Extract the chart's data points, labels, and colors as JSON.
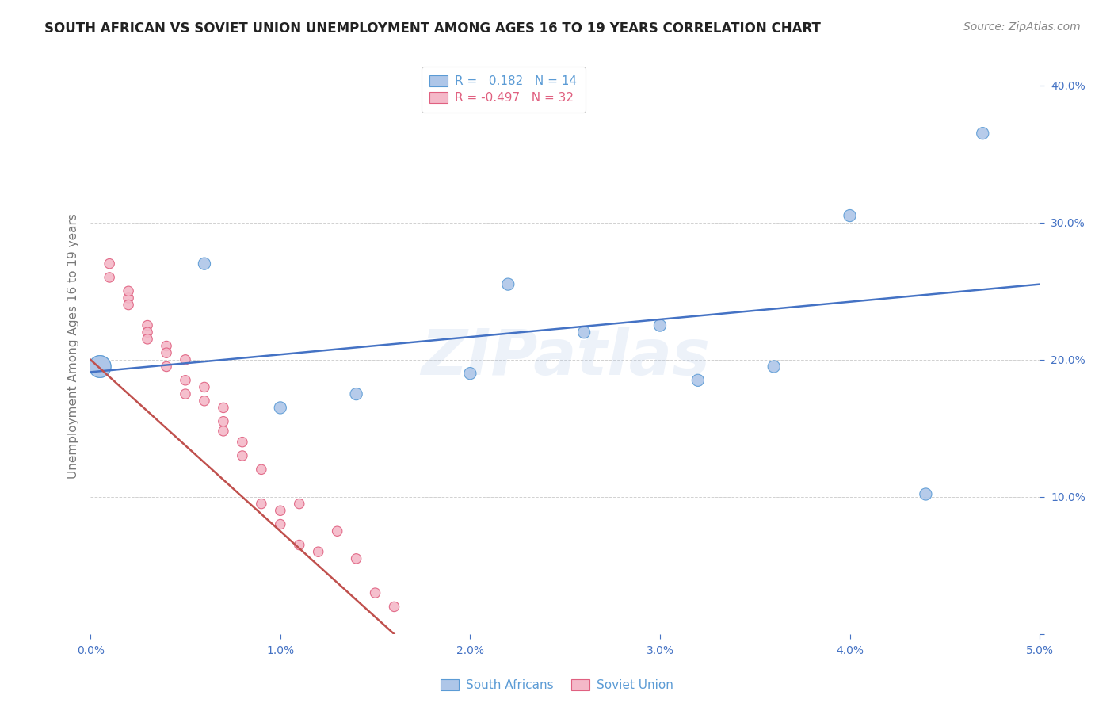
{
  "title": "SOUTH AFRICAN VS SOVIET UNION UNEMPLOYMENT AMONG AGES 16 TO 19 YEARS CORRELATION CHART",
  "source": "Source: ZipAtlas.com",
  "ylabel": "Unemployment Among Ages 16 to 19 years",
  "xlim": [
    0.0,
    0.05
  ],
  "ylim": [
    0.0,
    0.42
  ],
  "x_ticks": [
    0.0,
    0.01,
    0.02,
    0.03,
    0.04,
    0.05
  ],
  "x_tick_labels": [
    "0.0%",
    "1.0%",
    "2.0%",
    "3.0%",
    "4.0%",
    "5.0%"
  ],
  "y_ticks": [
    0.0,
    0.1,
    0.2,
    0.3,
    0.4
  ],
  "y_tick_labels": [
    "",
    "10.0%",
    "20.0%",
    "30.0%",
    "40.0%"
  ],
  "grid_color": "#cccccc",
  "background_color": "#ffffff",
  "blue_color": "#aec6e8",
  "blue_edge_color": "#5b9bd5",
  "pink_color": "#f4b8c8",
  "pink_edge_color": "#e06080",
  "blue_line_color": "#4472c4",
  "pink_line_color": "#c0504d",
  "R_blue": 0.182,
  "N_blue": 14,
  "R_pink": -0.497,
  "N_pink": 32,
  "south_african_x": [
    0.0005,
    0.0005,
    0.006,
    0.01,
    0.014,
    0.02,
    0.022,
    0.026,
    0.03,
    0.032,
    0.036,
    0.04,
    0.044,
    0.047
  ],
  "south_african_y": [
    0.195,
    0.195,
    0.27,
    0.165,
    0.175,
    0.19,
    0.255,
    0.22,
    0.225,
    0.185,
    0.195,
    0.305,
    0.102,
    0.365
  ],
  "south_african_size": [
    400,
    400,
    120,
    120,
    120,
    120,
    120,
    120,
    120,
    120,
    120,
    120,
    120,
    120
  ],
  "soviet_x": [
    0.001,
    0.001,
    0.002,
    0.002,
    0.002,
    0.003,
    0.003,
    0.003,
    0.004,
    0.004,
    0.004,
    0.005,
    0.005,
    0.005,
    0.006,
    0.006,
    0.007,
    0.007,
    0.007,
    0.008,
    0.008,
    0.009,
    0.009,
    0.01,
    0.01,
    0.011,
    0.011,
    0.012,
    0.013,
    0.014,
    0.015,
    0.016
  ],
  "soviet_y": [
    0.26,
    0.27,
    0.245,
    0.24,
    0.25,
    0.225,
    0.22,
    0.215,
    0.21,
    0.205,
    0.195,
    0.2,
    0.185,
    0.175,
    0.18,
    0.17,
    0.165,
    0.155,
    0.148,
    0.14,
    0.13,
    0.12,
    0.095,
    0.09,
    0.08,
    0.065,
    0.095,
    0.06,
    0.075,
    0.055,
    0.03,
    0.02
  ],
  "soviet_size": [
    80,
    80,
    80,
    80,
    80,
    80,
    80,
    80,
    80,
    80,
    80,
    80,
    80,
    80,
    80,
    80,
    80,
    80,
    80,
    80,
    80,
    80,
    80,
    80,
    80,
    80,
    80,
    80,
    80,
    80,
    80,
    80
  ],
  "blue_trend_x0": 0.0,
  "blue_trend_y0": 0.191,
  "blue_trend_x1": 0.05,
  "blue_trend_y1": 0.255,
  "pink_trend_x0": 0.0,
  "pink_trend_y0": 0.2,
  "pink_trend_x1": 0.016,
  "pink_trend_y1": 0.0,
  "watermark": "ZIPatlas",
  "title_fontsize": 12,
  "axis_label_fontsize": 11,
  "tick_fontsize": 10,
  "legend_fontsize": 11,
  "source_fontsize": 10
}
